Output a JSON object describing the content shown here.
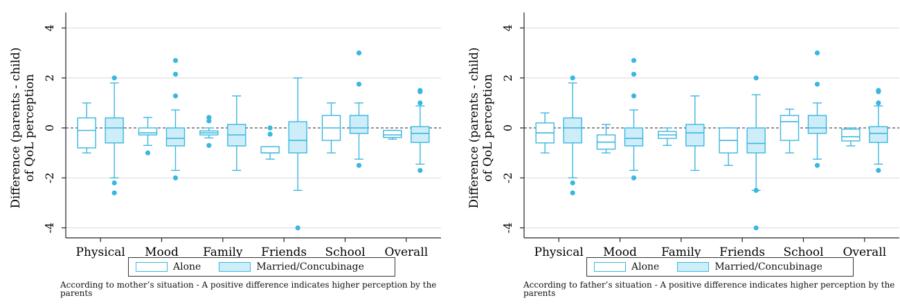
{
  "chart_data": [
    {
      "type": "box",
      "ylabel": "Difference (parents - child)\nof QoL perception",
      "ylim": [
        -4.4,
        4.4
      ],
      "yticks": [
        4,
        2,
        0,
        -2,
        -4
      ],
      "yticklabels": [
        "4",
        "2",
        "0",
        "-2",
        "-4"
      ],
      "grid": true,
      "reference_line": 0,
      "categories": [
        "Physical",
        "Mood",
        "Family",
        "Friends",
        "School",
        "Overall"
      ],
      "legend": {
        "position": "bottom",
        "entries": [
          "Alone",
          "Married/Concubinage"
        ]
      },
      "series": [
        {
          "name": "Alone",
          "boxes": [
            {
              "whisker_low": -1.0,
              "q1": -0.8,
              "median": -0.1,
              "q3": 0.4,
              "whisker_high": 1.0,
              "outliers": []
            },
            {
              "whisker_low": -0.7,
              "q1": -0.28,
              "median": -0.2,
              "q3": 0.0,
              "whisker_high": 0.42,
              "outliers": [
                -1.0
              ]
            },
            {
              "whisker_low": -0.4,
              "q1": -0.28,
              "median": -0.2,
              "q3": -0.12,
              "whisker_high": 0.0,
              "outliers": [
                0.42,
                0.28,
                -0.7
              ]
            },
            {
              "whisker_low": -1.25,
              "q1": -1.0,
              "median": -1.0,
              "q3": -0.75,
              "whisker_high": -0.75,
              "outliers": [
                0.0,
                -0.25
              ]
            },
            {
              "whisker_low": -1.0,
              "q1": -0.5,
              "median": 0.0,
              "q3": 0.5,
              "whisker_high": 1.0,
              "outliers": []
            },
            {
              "whisker_low": -0.45,
              "q1": -0.38,
              "median": -0.28,
              "q3": -0.1,
              "whisker_high": -0.1,
              "outliers": []
            }
          ]
        },
        {
          "name": "Married/Concubinage",
          "boxes": [
            {
              "whisker_low": -2.0,
              "q1": -0.6,
              "median": 0.0,
              "q3": 0.4,
              "whisker_high": 1.8,
              "outliers": [
                2.0,
                -2.2,
                -2.6
              ]
            },
            {
              "whisker_low": -1.7,
              "q1": -0.72,
              "median": -0.42,
              "q3": 0.0,
              "whisker_high": 0.72,
              "outliers": [
                2.7,
                2.15,
                1.28,
                -2.0
              ]
            },
            {
              "whisker_low": -1.7,
              "q1": -0.72,
              "median": -0.28,
              "q3": 0.14,
              "whisker_high": 1.28,
              "outliers": []
            },
            {
              "whisker_low": -2.5,
              "q1": -1.0,
              "median": -0.5,
              "q3": 0.25,
              "whisker_high": 2.0,
              "outliers": [
                -4.0
              ]
            },
            {
              "whisker_low": -1.25,
              "q1": -0.22,
              "median": 0.0,
              "q3": 0.5,
              "whisker_high": 1.0,
              "outliers": [
                3.0,
                1.75,
                -1.5
              ]
            },
            {
              "whisker_low": -1.45,
              "q1": -0.58,
              "median": -0.22,
              "q3": 0.05,
              "whisker_high": 0.88,
              "outliers": [
                1.5,
                1.45,
                1.0,
                -1.7
              ]
            }
          ]
        }
      ],
      "note": "According to mother’s situation - A positive difference indicates higher perception by the parents"
    },
    {
      "type": "box",
      "ylabel": "Difference (parents - child)\nof QoL perception",
      "ylim": [
        -4.4,
        4.4
      ],
      "yticks": [
        4,
        2,
        0,
        -2,
        -4
      ],
      "yticklabels": [
        "4",
        "2",
        "0",
        "-2",
        "-4"
      ],
      "grid": true,
      "reference_line": 0,
      "categories": [
        "Physical",
        "Mood",
        "Family",
        "Friends",
        "School",
        "Overall"
      ],
      "legend": {
        "position": "bottom",
        "entries": [
          "Alone",
          "Married/Concubinage"
        ]
      },
      "series": [
        {
          "name": "Alone",
          "boxes": [
            {
              "whisker_low": -1.0,
              "q1": -0.6,
              "median": -0.2,
              "q3": 0.2,
              "whisker_high": 0.6,
              "outliers": []
            },
            {
              "whisker_low": -1.0,
              "q1": -0.85,
              "median": -0.57,
              "q3": -0.28,
              "whisker_high": 0.14,
              "outliers": []
            },
            {
              "whisker_low": -0.7,
              "q1": -0.42,
              "median": -0.28,
              "q3": -0.14,
              "whisker_high": 0.0,
              "outliers": []
            },
            {
              "whisker_low": -1.5,
              "q1": -1.0,
              "median": -0.5,
              "q3": 0.0,
              "whisker_high": 0.0,
              "outliers": []
            },
            {
              "whisker_low": -1.0,
              "q1": -0.5,
              "median": 0.25,
              "q3": 0.5,
              "whisker_high": 0.75,
              "outliers": []
            },
            {
              "whisker_low": -0.72,
              "q1": -0.52,
              "median": -0.35,
              "q3": -0.05,
              "whisker_high": 0.0,
              "outliers": []
            }
          ]
        },
        {
          "name": "Married/Concubinage",
          "boxes": [
            {
              "whisker_low": -2.0,
              "q1": -0.6,
              "median": 0.0,
              "q3": 0.4,
              "whisker_high": 1.8,
              "outliers": [
                2.0,
                -2.2,
                -2.6
              ]
            },
            {
              "whisker_low": -1.7,
              "q1": -0.72,
              "median": -0.42,
              "q3": 0.0,
              "whisker_high": 0.72,
              "outliers": [
                2.7,
                2.15,
                1.28,
                -2.0
              ]
            },
            {
              "whisker_low": -1.7,
              "q1": -0.72,
              "median": -0.2,
              "q3": 0.14,
              "whisker_high": 1.28,
              "outliers": []
            },
            {
              "whisker_low": -2.5,
              "q1": -1.0,
              "median": -0.62,
              "q3": 0.0,
              "whisker_high": 1.33,
              "outliers": [
                2.0,
                -2.5,
                -4.0
              ]
            },
            {
              "whisker_low": -1.25,
              "q1": -0.22,
              "median": 0.0,
              "q3": 0.5,
              "whisker_high": 1.0,
              "outliers": [
                3.0,
                1.75,
                -1.5
              ]
            },
            {
              "whisker_low": -1.45,
              "q1": -0.58,
              "median": -0.22,
              "q3": 0.05,
              "whisker_high": 0.88,
              "outliers": [
                1.5,
                1.45,
                1.0,
                -1.7
              ]
            }
          ]
        }
      ],
      "note": "According to father’s situation - A positive difference indicates higher perception by the parents"
    }
  ],
  "colors": {
    "box_stroke": "#3AB7E0",
    "box_fill_married": "#cdeef9",
    "outlier": "#3AB7E0",
    "grid": "#d9d9d9",
    "axis": "#222222"
  }
}
